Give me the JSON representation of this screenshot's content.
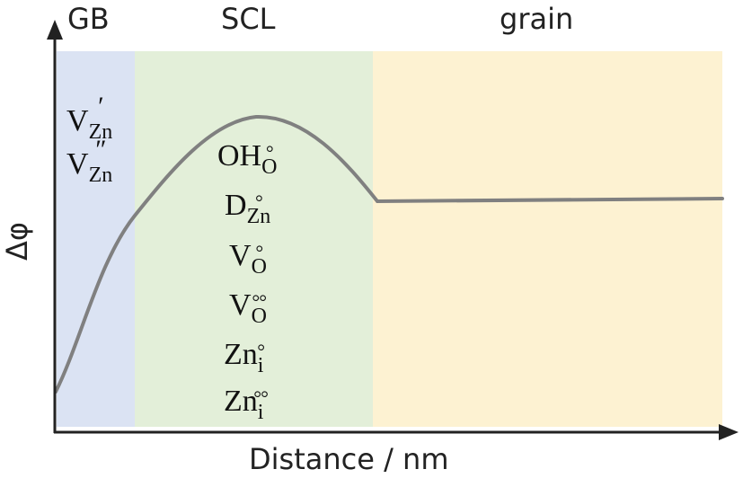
{
  "regions": {
    "gb": {
      "label": "GB",
      "color": "#dbe3f3"
    },
    "scl": {
      "label": "SCL",
      "color": "#e3efd9"
    },
    "grain": {
      "label": "grain",
      "color": "#fdf2d2"
    }
  },
  "axes": {
    "x_label": "Distance / nm",
    "y_label": "Δφ"
  },
  "curve_color": "#808080",
  "gb_defects": [
    {
      "base": "V",
      "sub": "Zn",
      "charge": "′"
    },
    {
      "base": "V",
      "sub": "Zn",
      "charge": "′′"
    }
  ],
  "scl_defects": [
    {
      "base": "OH",
      "sub": "O",
      "charge": "°"
    },
    {
      "base": "D",
      "sub": "Zn",
      "charge": "°"
    },
    {
      "base": "V",
      "sub": "O",
      "charge": "°"
    },
    {
      "base": "V",
      "sub": "O",
      "charge": "°°"
    },
    {
      "base": "Zn",
      "sub": "i",
      "charge": "°"
    },
    {
      "base": "Zn",
      "sub": "i",
      "charge": "°°"
    }
  ]
}
